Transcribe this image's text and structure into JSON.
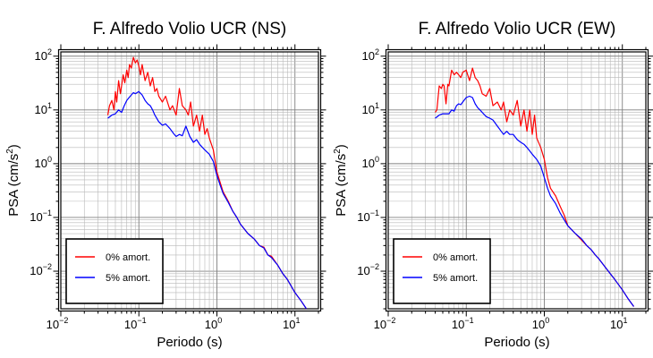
{
  "chart_data": [
    {
      "type": "line",
      "title": "F. Alfredo Volio UCR (NS)",
      "xlabel": "Periodo (s)",
      "ylabel": "PSA (cm/s²)",
      "ylabel_parts": {
        "base": "PSA (cm/s",
        "sup": "2",
        "end": ")"
      },
      "x_scale": "log",
      "y_scale": "log",
      "xlim": [
        0.01,
        20
      ],
      "ylim": [
        0.002,
        120
      ],
      "x_ticks": [
        {
          "base": "10",
          "exp": "−2",
          "value": 0.01
        },
        {
          "base": "10",
          "exp": "−1",
          "value": 0.1
        },
        {
          "base": "10",
          "exp": "0",
          "value": 1
        },
        {
          "base": "10",
          "exp": "1",
          "value": 10
        }
      ],
      "y_ticks": [
        {
          "base": "10",
          "exp": "−2",
          "value": 0.01
        },
        {
          "base": "10",
          "exp": "−1",
          "value": 0.1
        },
        {
          "base": "10",
          "exp": "0",
          "value": 1
        },
        {
          "base": "10",
          "exp": "1",
          "value": 10
        },
        {
          "base": "10",
          "exp": "2",
          "value": 100
        }
      ],
      "grid": true,
      "legend_position": "bottom-left",
      "series": [
        {
          "name": "0% amort.",
          "color": "#ff0000",
          "x": [
            0.04,
            0.042,
            0.045,
            0.048,
            0.05,
            0.052,
            0.055,
            0.058,
            0.06,
            0.063,
            0.066,
            0.07,
            0.073,
            0.076,
            0.08,
            0.085,
            0.09,
            0.095,
            0.1,
            0.105,
            0.11,
            0.12,
            0.13,
            0.14,
            0.15,
            0.16,
            0.17,
            0.18,
            0.2,
            0.22,
            0.25,
            0.27,
            0.3,
            0.33,
            0.36,
            0.4,
            0.43,
            0.46,
            0.5,
            0.55,
            0.6,
            0.65,
            0.7,
            0.75,
            0.8,
            0.9,
            1.0,
            1.1,
            1.2,
            1.4,
            1.6,
            1.8,
            2.0,
            2.5,
            3.0,
            3.5,
            4.0,
            4.5,
            5.0,
            6.0,
            7.0,
            8.0,
            10.0,
            12.0,
            14.0
          ],
          "y": [
            8,
            12,
            15,
            10,
            22,
            14,
            35,
            20,
            28,
            45,
            32,
            55,
            40,
            70,
            60,
            95,
            75,
            85,
            65,
            45,
            70,
            35,
            50,
            28,
            40,
            22,
            25,
            18,
            14,
            18,
            10,
            12,
            8,
            25,
            12,
            10,
            8,
            14,
            5,
            8,
            4,
            8,
            3.5,
            4.5,
            3,
            1.8,
            0.7,
            0.45,
            0.3,
            0.2,
            0.13,
            0.1,
            0.075,
            0.05,
            0.04,
            0.03,
            0.028,
            0.02,
            0.019,
            0.013,
            0.009,
            0.007,
            0.004,
            0.0028,
            0.002
          ]
        },
        {
          "name": "5% amort.",
          "color": "#0000ff",
          "x": [
            0.04,
            0.045,
            0.05,
            0.055,
            0.06,
            0.065,
            0.07,
            0.075,
            0.08,
            0.085,
            0.09,
            0.1,
            0.11,
            0.12,
            0.13,
            0.14,
            0.15,
            0.16,
            0.18,
            0.2,
            0.22,
            0.25,
            0.28,
            0.3,
            0.33,
            0.36,
            0.4,
            0.45,
            0.5,
            0.55,
            0.6,
            0.7,
            0.8,
            0.9,
            1.0,
            1.1,
            1.2,
            1.4,
            1.6,
            1.8,
            2.0,
            2.5,
            3.0,
            3.5,
            4.0,
            4.5,
            5.0,
            6.0,
            7.0,
            8.0,
            10.0,
            12.0,
            14.0
          ],
          "y": [
            7,
            8,
            8.5,
            10,
            9,
            12,
            15,
            17,
            19,
            21,
            20,
            22,
            19,
            15,
            13,
            12,
            10,
            8,
            6,
            5.2,
            5.5,
            4.5,
            3.6,
            3.2,
            3.5,
            3.3,
            5,
            3.2,
            2.5,
            2.8,
            2.3,
            1.8,
            1.5,
            1.1,
            0.6,
            0.4,
            0.28,
            0.19,
            0.13,
            0.1,
            0.075,
            0.05,
            0.04,
            0.03,
            0.027,
            0.02,
            0.018,
            0.013,
            0.009,
            0.007,
            0.004,
            0.0028,
            0.002
          ]
        }
      ]
    },
    {
      "type": "line",
      "title": "F. Alfredo Volio UCR (EW)",
      "xlabel": "Periodo (s)",
      "ylabel": "PSA (cm/s²)",
      "ylabel_parts": {
        "base": "PSA (cm/s",
        "sup": "2",
        "end": ")"
      },
      "x_scale": "log",
      "y_scale": "log",
      "xlim": [
        0.01,
        20
      ],
      "ylim": [
        0.002,
        120
      ],
      "x_ticks": [
        {
          "base": "10",
          "exp": "−2",
          "value": 0.01
        },
        {
          "base": "10",
          "exp": "−1",
          "value": 0.1
        },
        {
          "base": "10",
          "exp": "0",
          "value": 1
        },
        {
          "base": "10",
          "exp": "1",
          "value": 10
        }
      ],
      "y_ticks": [
        {
          "base": "10",
          "exp": "−2",
          "value": 0.01
        },
        {
          "base": "10",
          "exp": "−1",
          "value": 0.1
        },
        {
          "base": "10",
          "exp": "0",
          "value": 1
        },
        {
          "base": "10",
          "exp": "1",
          "value": 10
        },
        {
          "base": "10",
          "exp": "2",
          "value": 100
        }
      ],
      "grid": true,
      "legend_position": "bottom-left",
      "series": [
        {
          "name": "0% amort.",
          "color": "#ff0000",
          "x": [
            0.04,
            0.042,
            0.045,
            0.048,
            0.05,
            0.052,
            0.055,
            0.058,
            0.06,
            0.065,
            0.07,
            0.075,
            0.08,
            0.085,
            0.09,
            0.1,
            0.11,
            0.12,
            0.13,
            0.14,
            0.15,
            0.16,
            0.18,
            0.2,
            0.22,
            0.25,
            0.28,
            0.3,
            0.33,
            0.36,
            0.4,
            0.45,
            0.5,
            0.55,
            0.6,
            0.65,
            0.7,
            0.75,
            0.8,
            0.9,
            1.0,
            1.1,
            1.2,
            1.4,
            1.6,
            1.8,
            2.0,
            2.5,
            3.0,
            3.5,
            4.0,
            4.5,
            5.0,
            6.0,
            7.0,
            8.0,
            10.0,
            12.0,
            14.0
          ],
          "y": [
            9,
            10,
            28,
            25,
            30,
            28,
            13,
            30,
            28,
            55,
            45,
            50,
            45,
            40,
            50,
            55,
            35,
            60,
            40,
            35,
            28,
            20,
            18,
            25,
            12,
            14,
            10,
            14,
            6,
            10,
            8,
            15,
            5,
            10,
            4,
            10,
            3.5,
            8,
            3,
            2,
            1.2,
            0.55,
            0.35,
            0.25,
            0.16,
            0.11,
            0.07,
            0.05,
            0.038,
            0.03,
            0.025,
            0.02,
            0.017,
            0.012,
            0.009,
            0.007,
            0.0045,
            0.003,
            0.0022
          ]
        },
        {
          "name": "5% amort.",
          "color": "#0000ff",
          "x": [
            0.04,
            0.045,
            0.05,
            0.055,
            0.06,
            0.065,
            0.07,
            0.075,
            0.08,
            0.085,
            0.09,
            0.1,
            0.11,
            0.12,
            0.13,
            0.14,
            0.15,
            0.16,
            0.18,
            0.2,
            0.22,
            0.25,
            0.28,
            0.3,
            0.33,
            0.36,
            0.4,
            0.45,
            0.5,
            0.55,
            0.6,
            0.7,
            0.8,
            0.9,
            1.0,
            1.1,
            1.2,
            1.4,
            1.6,
            1.8,
            2.0,
            2.5,
            3.0,
            3.5,
            4.0,
            4.5,
            5.0,
            6.0,
            7.0,
            8.0,
            10.0,
            12.0,
            14.0
          ],
          "y": [
            7,
            8,
            8.5,
            8.5,
            8.5,
            10,
            9.5,
            12,
            13,
            12.5,
            14,
            17,
            18,
            17,
            13,
            11,
            10,
            9,
            7.5,
            7,
            6.5,
            5,
            4,
            3.5,
            4,
            3.5,
            3.5,
            2.8,
            2.5,
            2.3,
            2,
            1.5,
            1.2,
            0.9,
            0.55,
            0.35,
            0.25,
            0.18,
            0.12,
            0.09,
            0.07,
            0.05,
            0.04,
            0.03,
            0.025,
            0.02,
            0.017,
            0.012,
            0.009,
            0.007,
            0.0045,
            0.003,
            0.0022
          ]
        }
      ]
    }
  ]
}
